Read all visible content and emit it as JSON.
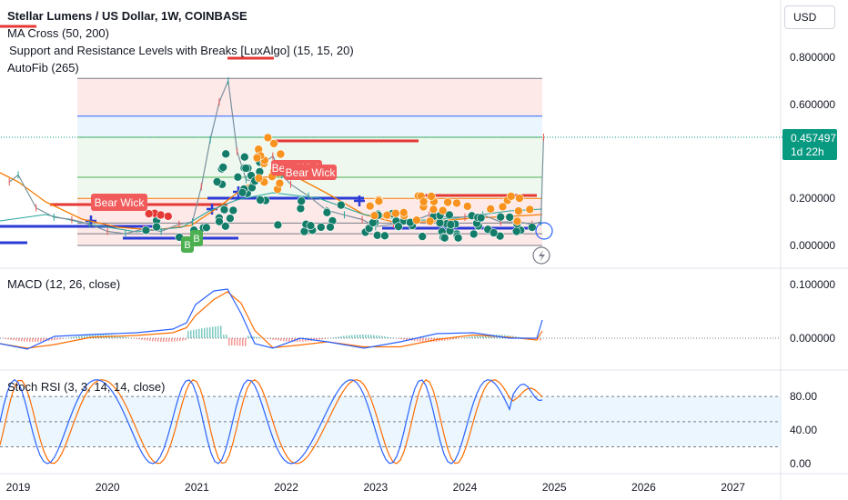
{
  "header": {
    "title": "Stellar Lumens / US Dollar, 1W, COINBASE",
    "indicators": [
      "MA Cross (50, 200)",
      "Support and Resistance Levels with Breaks [LuxAlgo] (15, 15, 20)",
      "AutoFib (265)"
    ]
  },
  "currency_button": "USD",
  "price_badge": {
    "price": "0.457497",
    "countdown": "1d 22h"
  },
  "signal_labels": {
    "bear_wick": "Bear Wick",
    "bear_wick_2": "Bear Wick",
    "bull": "B"
  },
  "panes": {
    "macd_title": "MACD (12, 26, close)",
    "stoch_title": "Stoch RSI (3, 3, 14, 14, close)"
  },
  "colors": {
    "price_line": "#2962ff",
    "ma_fast": "#26a69a",
    "ma_slow": "#f57c00",
    "support": "#2b3bd6",
    "resistance": "#e53935",
    "bull_circle": "#137d6a",
    "bear_circle": "#f7931e",
    "macd": "#2962ff",
    "signal": "#ff6d00",
    "stoch_k": "#2962ff",
    "stoch_d": "#ff6d00"
  },
  "chart_data": [
    {
      "type": "line",
      "name": "main",
      "x_ticks": [
        "2019",
        "2020",
        "2021",
        "2022",
        "2023",
        "2024",
        "2025",
        "2026",
        "2027"
      ],
      "y_ticks": [
        "0.800000",
        "0.600000",
        "0.200000",
        "0.000000"
      ],
      "ylim": [
        -0.05,
        0.85
      ],
      "fib_levels": [
        0.0,
        0.05,
        0.095,
        0.2,
        0.29,
        0.46,
        0.55,
        0.71
      ],
      "x": [
        2018.9,
        2019.0,
        2019.2,
        2019.4,
        2019.6,
        2019.8,
        2020.0,
        2020.2,
        2020.4,
        2020.6,
        2020.8,
        2020.95,
        2021.05,
        2021.15,
        2021.25,
        2021.35,
        2021.45,
        2021.55,
        2021.65,
        2021.75,
        2021.85,
        2021.95,
        2022.05,
        2022.25,
        2022.45,
        2022.65,
        2022.85,
        2023.0,
        2023.2,
        2023.4,
        2023.6,
        2023.8,
        2024.0,
        2024.2,
        2024.4,
        2024.6,
        2024.75,
        2024.85,
        2024.88
      ],
      "values": [
        0.27,
        0.3,
        0.16,
        0.12,
        0.11,
        0.09,
        0.06,
        0.05,
        0.07,
        0.06,
        0.09,
        0.1,
        0.25,
        0.45,
        0.61,
        0.7,
        0.4,
        0.28,
        0.27,
        0.35,
        0.38,
        0.3,
        0.26,
        0.21,
        0.15,
        0.13,
        0.11,
        0.08,
        0.09,
        0.1,
        0.13,
        0.12,
        0.12,
        0.13,
        0.1,
        0.1,
        0.09,
        0.1,
        0.46
      ]
    },
    {
      "type": "line",
      "name": "macd",
      "y_ticks": [
        "0.100000",
        "0.000000"
      ],
      "ylim": [
        -0.05,
        0.12
      ]
    },
    {
      "type": "line",
      "name": "stoch",
      "y_ticks": [
        "80.00",
        "40.00",
        "0.00"
      ],
      "ylim": [
        -5,
        110
      ]
    }
  ]
}
